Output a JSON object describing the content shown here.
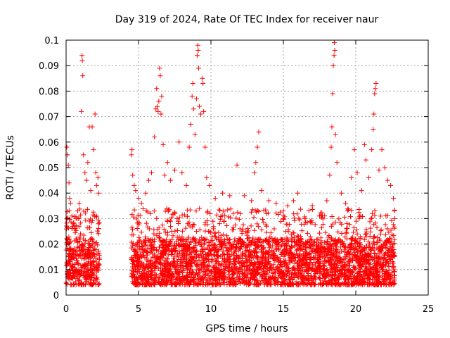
{
  "chart_data": {
    "type": "scatter",
    "title": "Day 319 of 2024, Rate Of TEC Index for receiver naur",
    "xlabel": "GPS time / hours",
    "ylabel": "ROTI / TECUs",
    "xlim": [
      0,
      25
    ],
    "ylim": [
      0,
      0.1
    ],
    "x_ticks": [
      "0",
      "5",
      "10",
      "15",
      "20",
      "25"
    ],
    "y_ticks": [
      "0",
      "0.01",
      "0.02",
      "0.03",
      "0.04",
      "0.05",
      "0.06",
      "0.07",
      "0.08",
      "0.09",
      "0.1"
    ],
    "grid": true,
    "marker": "+",
    "color": "#ff0000",
    "series": [
      {
        "points": [
          [
            0.05,
            0.058
          ],
          [
            0.1,
            0.055
          ],
          [
            0.15,
            0.051
          ],
          [
            0.2,
            0.044
          ],
          [
            0.25,
            0.038
          ],
          [
            0.3,
            0.036
          ],
          [
            0.4,
            0.031
          ],
          [
            0.5,
            0.028
          ],
          [
            0.6,
            0.026
          ],
          [
            0.7,
            0.03
          ],
          [
            0.8,
            0.033
          ],
          [
            0.9,
            0.036
          ],
          [
            1.0,
            0.024
          ],
          [
            1.05,
            0.072
          ],
          [
            1.1,
            0.094
          ],
          [
            1.12,
            0.092
          ],
          [
            1.15,
            0.086
          ],
          [
            1.2,
            0.055
          ],
          [
            1.3,
            0.048
          ],
          [
            1.4,
            0.045
          ],
          [
            1.5,
            0.052
          ],
          [
            1.6,
            0.066
          ],
          [
            1.7,
            0.041
          ],
          [
            1.8,
            0.066
          ],
          [
            1.9,
            0.057
          ],
          [
            2.0,
            0.071
          ],
          [
            2.05,
            0.048
          ],
          [
            2.1,
            0.043
          ],
          [
            2.2,
            0.046
          ],
          [
            2.25,
            0.04
          ],
          [
            4.5,
            0.055
          ],
          [
            4.55,
            0.057
          ],
          [
            4.6,
            0.047
          ],
          [
            4.7,
            0.043
          ],
          [
            4.8,
            0.041
          ],
          [
            5.0,
            0.038
          ],
          [
            5.2,
            0.036
          ],
          [
            5.5,
            0.04
          ],
          [
            5.7,
            0.045
          ],
          [
            5.9,
            0.048
          ],
          [
            6.1,
            0.062
          ],
          [
            6.2,
            0.073
          ],
          [
            6.25,
            0.081
          ],
          [
            6.3,
            0.074
          ],
          [
            6.35,
            0.072
          ],
          [
            6.4,
            0.076
          ],
          [
            6.45,
            0.089
          ],
          [
            6.5,
            0.086
          ],
          [
            6.55,
            0.071
          ],
          [
            6.6,
            0.078
          ],
          [
            6.7,
            0.059
          ],
          [
            6.8,
            0.047
          ],
          [
            7.0,
            0.052
          ],
          [
            7.2,
            0.045
          ],
          [
            7.5,
            0.049
          ],
          [
            7.8,
            0.06
          ],
          [
            8.0,
            0.048
          ],
          [
            8.3,
            0.043
          ],
          [
            8.5,
            0.058
          ],
          [
            8.6,
            0.067
          ],
          [
            8.7,
            0.078
          ],
          [
            8.75,
            0.083
          ],
          [
            8.8,
            0.073
          ],
          [
            8.9,
            0.063
          ],
          [
            9.0,
            0.077
          ],
          [
            9.05,
            0.094
          ],
          [
            9.1,
            0.098
          ],
          [
            9.12,
            0.096
          ],
          [
            9.15,
            0.089
          ],
          [
            9.2,
            0.074
          ],
          [
            9.3,
            0.071
          ],
          [
            9.4,
            0.085
          ],
          [
            9.45,
            0.083
          ],
          [
            9.5,
            0.072
          ],
          [
            9.6,
            0.058
          ],
          [
            9.7,
            0.046
          ],
          [
            9.9,
            0.043
          ],
          [
            10.3,
            0.038
          ],
          [
            10.8,
            0.04
          ],
          [
            11.3,
            0.039
          ],
          [
            11.8,
            0.051
          ],
          [
            12.3,
            0.039
          ],
          [
            12.8,
            0.037
          ],
          [
            13.0,
            0.048
          ],
          [
            13.1,
            0.052
          ],
          [
            13.2,
            0.058
          ],
          [
            13.3,
            0.064
          ],
          [
            13.5,
            0.041
          ],
          [
            14.0,
            0.037
          ],
          [
            14.5,
            0.036
          ],
          [
            15.0,
            0.033
          ],
          [
            15.3,
            0.035
          ],
          [
            15.7,
            0.037
          ],
          [
            16.0,
            0.04
          ],
          [
            16.5,
            0.03
          ],
          [
            17.0,
            0.035
          ],
          [
            17.5,
            0.031
          ],
          [
            18.0,
            0.037
          ],
          [
            18.2,
            0.047
          ],
          [
            18.3,
            0.058
          ],
          [
            18.35,
            0.066
          ],
          [
            18.4,
            0.079
          ],
          [
            18.45,
            0.09
          ],
          [
            18.5,
            0.094
          ],
          [
            18.52,
            0.099
          ],
          [
            18.55,
            0.096
          ],
          [
            18.6,
            0.063
          ],
          [
            18.7,
            0.052
          ],
          [
            19.0,
            0.04
          ],
          [
            19.3,
            0.036
          ],
          [
            19.7,
            0.046
          ],
          [
            19.9,
            0.057
          ],
          [
            20.1,
            0.048
          ],
          [
            20.4,
            0.041
          ],
          [
            20.6,
            0.059
          ],
          [
            20.7,
            0.053
          ],
          [
            20.9,
            0.046
          ],
          [
            21.1,
            0.057
          ],
          [
            21.2,
            0.065
          ],
          [
            21.25,
            0.071
          ],
          [
            21.3,
            0.079
          ],
          [
            21.35,
            0.081
          ],
          [
            21.4,
            0.083
          ],
          [
            21.6,
            0.049
          ],
          [
            21.8,
            0.057
          ],
          [
            22.0,
            0.05
          ],
          [
            22.2,
            0.045
          ],
          [
            22.4,
            0.043
          ],
          [
            22.6,
            0.038
          ]
        ]
      }
    ]
  }
}
